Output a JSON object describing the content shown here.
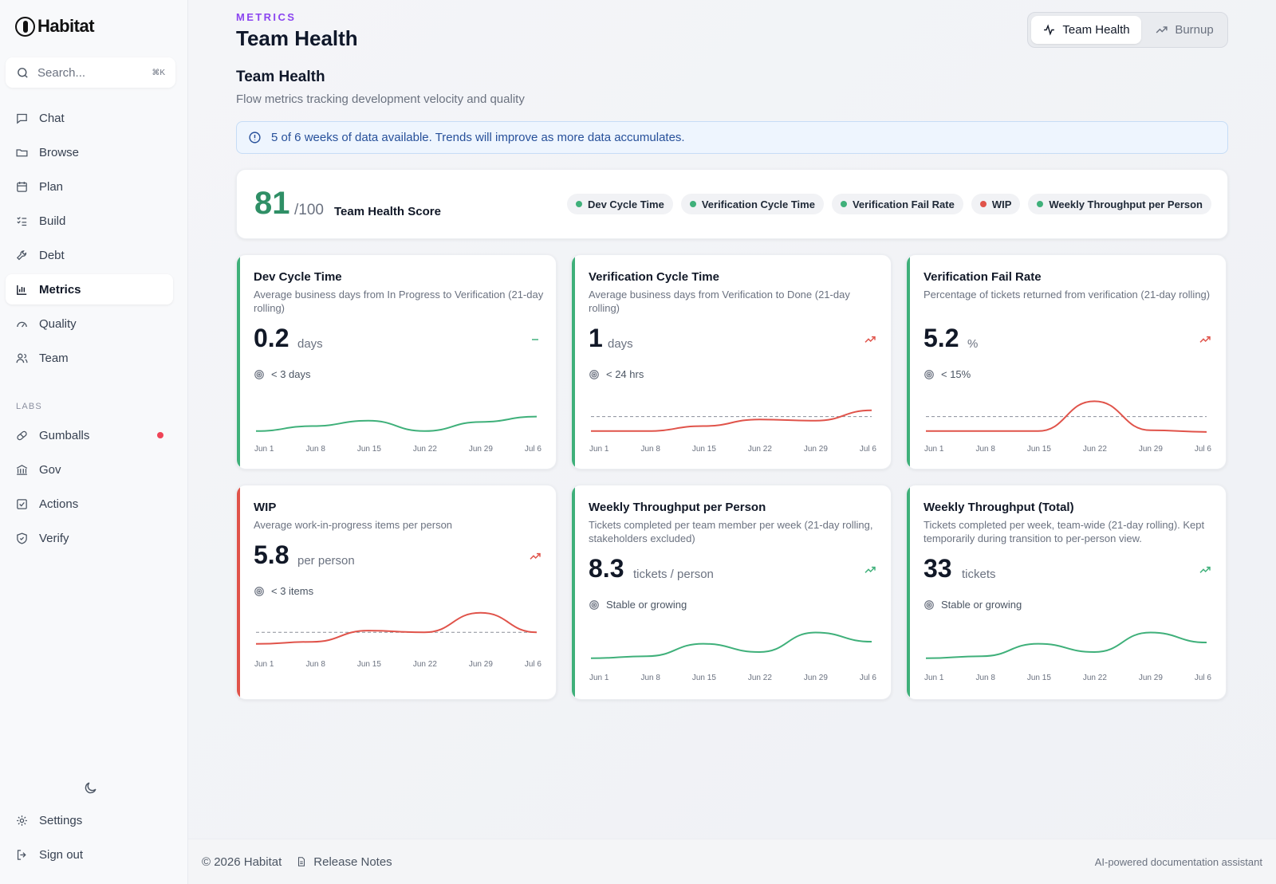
{
  "app": {
    "name": "Habitat"
  },
  "search": {
    "placeholder": "Search...",
    "shortcut": "⌘K"
  },
  "nav": {
    "items": [
      {
        "label": "Chat",
        "icon": "chat-icon"
      },
      {
        "label": "Browse",
        "icon": "folder-icon"
      },
      {
        "label": "Plan",
        "icon": "calendar-icon"
      },
      {
        "label": "Build",
        "icon": "list-check-icon"
      },
      {
        "label": "Debt",
        "icon": "wrench-icon"
      },
      {
        "label": "Metrics",
        "icon": "bar-chart-icon",
        "active": true
      },
      {
        "label": "Quality",
        "icon": "gauge-icon"
      },
      {
        "label": "Team",
        "icon": "users-icon"
      }
    ],
    "labs_label": "LABS",
    "labs_items": [
      {
        "label": "Gumballs",
        "icon": "pill-icon",
        "badge": true
      },
      {
        "label": "Gov",
        "icon": "bank-icon"
      },
      {
        "label": "Actions",
        "icon": "checkbox-icon"
      },
      {
        "label": "Verify",
        "icon": "shield-check-icon"
      }
    ],
    "bottom_items": [
      {
        "label": "Settings",
        "icon": "gear-icon"
      },
      {
        "label": "Sign out",
        "icon": "sign-out-icon"
      }
    ]
  },
  "header": {
    "eyebrow": "METRICS",
    "title": "Team Health",
    "tabs": [
      {
        "label": "Team Health",
        "icon": "pulse-icon",
        "active": true
      },
      {
        "label": "Burnup",
        "icon": "trend-up-icon",
        "active": false
      }
    ]
  },
  "section": {
    "title": "Team Health",
    "subtitle": "Flow metrics tracking development velocity and quality"
  },
  "notice": {
    "text": "5 of 6 weeks of data available. Trends will improve as more data accumulates."
  },
  "score": {
    "value": "81",
    "max": "/100",
    "label": "Team Health Score",
    "pills": [
      {
        "label": "Dev Cycle Time",
        "status": "green"
      },
      {
        "label": "Verification Cycle Time",
        "status": "green"
      },
      {
        "label": "Verification Fail Rate",
        "status": "green"
      },
      {
        "label": "WIP",
        "status": "red"
      },
      {
        "label": "Weekly Throughput per Person",
        "status": "green"
      }
    ]
  },
  "colors": {
    "green": "#3fb07a",
    "red": "#e0534a",
    "accent": "#8b45f0",
    "score": "#2f8f66"
  },
  "x_labels": [
    "Jun 1",
    "Jun 8",
    "Jun 15",
    "Jun 22",
    "Jun 29",
    "Jul 6"
  ],
  "cards": [
    {
      "title": "Dev Cycle Time",
      "description": "Average business days from In Progress to Verification (21-day rolling)",
      "value": "0.2",
      "unit": "days",
      "trend": "flat",
      "target": "< 3 days",
      "status": "green",
      "series": [
        0.1,
        0.22,
        0.35,
        0.1,
        0.32,
        0.45
      ],
      "threshold": null
    },
    {
      "title": "Verification Cycle Time",
      "description": "Average business days from Verification to Done (21-day rolling)",
      "value": "1",
      "unit": "days",
      "trend": "up",
      "target": "< 24 hrs",
      "status": "green",
      "series": [
        0.1,
        0.1,
        0.22,
        0.38,
        0.35,
        0.6
      ],
      "threshold": 0.45
    },
    {
      "title": "Verification Fail Rate",
      "description": "Percentage of tickets returned from verification (21-day rolling)",
      "value": "5.2",
      "unit": "%",
      "trend": "up",
      "target": "< 15%",
      "status": "green",
      "series": [
        0.1,
        0.1,
        0.1,
        0.82,
        0.12,
        0.08
      ],
      "threshold": 0.45
    },
    {
      "title": "WIP",
      "description": "Average work-in-progress items per person",
      "value": "5.8",
      "unit": "per person",
      "trend": "up",
      "target": "< 3 items",
      "status": "red",
      "series": [
        0.1,
        0.15,
        0.42,
        0.38,
        0.85,
        0.38
      ],
      "threshold": 0.38
    },
    {
      "title": "Weekly Throughput per Person",
      "description": "Tickets completed per team member per week (21-day rolling, stakeholders excluded)",
      "value": "8.3",
      "unit": "tickets / person",
      "trend": "up",
      "target": "Stable or growing",
      "status": "green",
      "series": [
        0.1,
        0.15,
        0.45,
        0.25,
        0.72,
        0.5
      ],
      "threshold": null
    },
    {
      "title": "Weekly Throughput (Total)",
      "description": "Tickets completed per week, team-wide (21-day rolling). Kept temporarily during transition to per-person view.",
      "value": "33",
      "unit": "tickets",
      "trend": "up",
      "target": "Stable or growing",
      "status": "green",
      "series": [
        0.1,
        0.15,
        0.45,
        0.25,
        0.72,
        0.48
      ],
      "threshold": null
    }
  ],
  "footer": {
    "copyright": "© 2026 Habitat",
    "release_notes": "Release Notes",
    "tagline": "AI-powered documentation assistant"
  }
}
